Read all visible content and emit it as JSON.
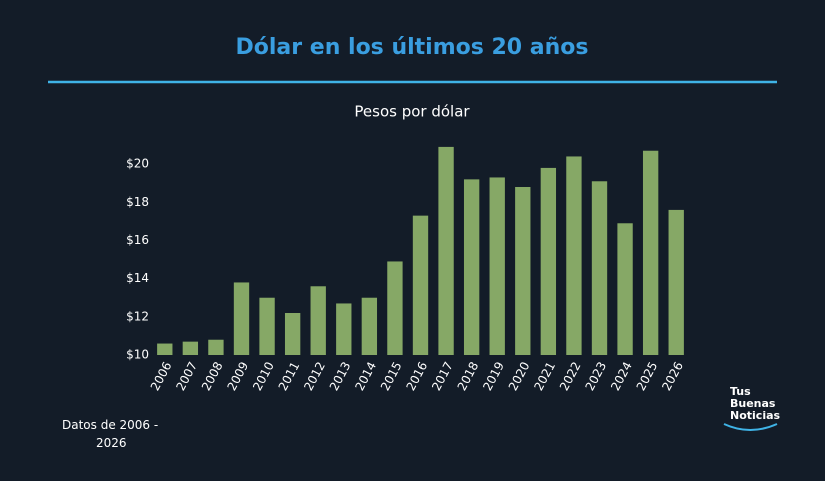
{
  "chart_data": {
    "type": "bar",
    "title": "Dólar en los últimos 20 años",
    "subtitle": "Pesos por dólar",
    "categories": [
      "2006",
      "2007",
      "2008",
      "2009",
      "2010",
      "2011",
      "2012",
      "2013",
      "2014",
      "2015",
      "2016",
      "2017",
      "2018",
      "2019",
      "2020",
      "2021",
      "2022",
      "2023",
      "2024",
      "2025",
      "2026"
    ],
    "values": [
      10.6,
      10.7,
      10.8,
      13.8,
      13.0,
      12.2,
      13.6,
      12.7,
      13.0,
      14.9,
      17.3,
      20.9,
      19.2,
      19.3,
      18.8,
      19.8,
      20.4,
      19.1,
      16.9,
      20.7,
      17.6
    ],
    "color": "#86a866",
    "ylim": [
      10,
      21
    ],
    "yticks": [
      {
        "value": 10,
        "label": "$10"
      },
      {
        "value": 12,
        "label": "$12"
      },
      {
        "value": 14,
        "label": "$14"
      },
      {
        "value": 16,
        "label": "$16"
      },
      {
        "value": 18,
        "label": "$18"
      },
      {
        "value": 20,
        "label": "$20"
      }
    ],
    "grid": false,
    "note": "Datos de 2006 - 2026"
  },
  "logo": {
    "lines": [
      "Tus",
      "Buenas",
      "Noticias"
    ]
  }
}
